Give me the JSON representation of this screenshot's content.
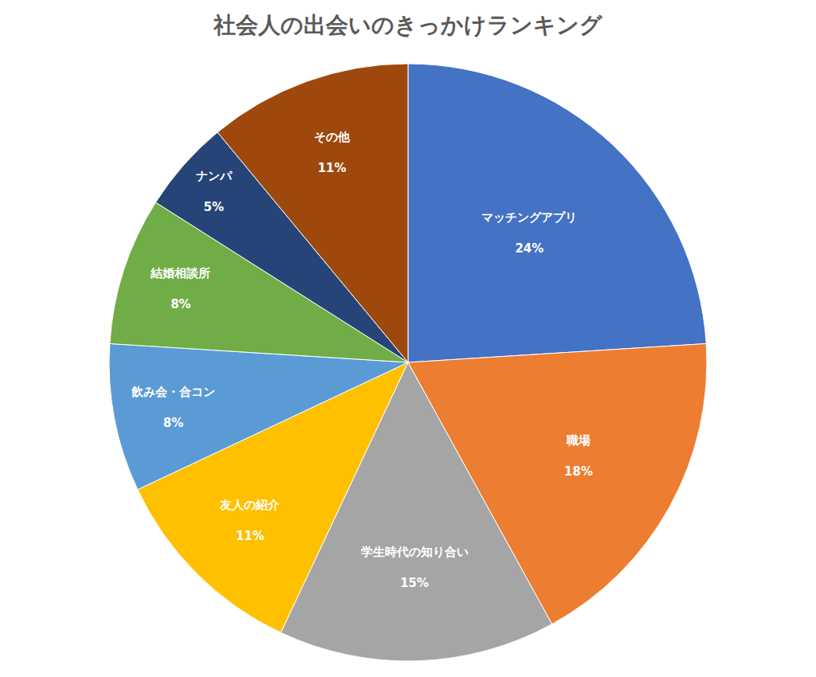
{
  "chart_data": {
    "type": "pie",
    "title": "社会人の出会いのきっかけランキング",
    "categories": [
      "マッチングアプリ",
      "職場",
      "学生時代の知り合い",
      "友人の紹介",
      "飲み会・合コン",
      "結婚相談所",
      "ナンパ",
      "その他"
    ],
    "values": [
      24,
      18,
      15,
      11,
      8,
      8,
      5,
      11
    ],
    "value_labels": [
      "24%",
      "18%",
      "15%",
      "11%",
      "8%",
      "8%",
      "5%",
      "11%"
    ],
    "colors": [
      "#4472c4",
      "#ed7d31",
      "#a5a5a5",
      "#ffc000",
      "#5b9bd5",
      "#70ad47",
      "#264478",
      "#9e480e"
    ],
    "data_labels": true
  }
}
